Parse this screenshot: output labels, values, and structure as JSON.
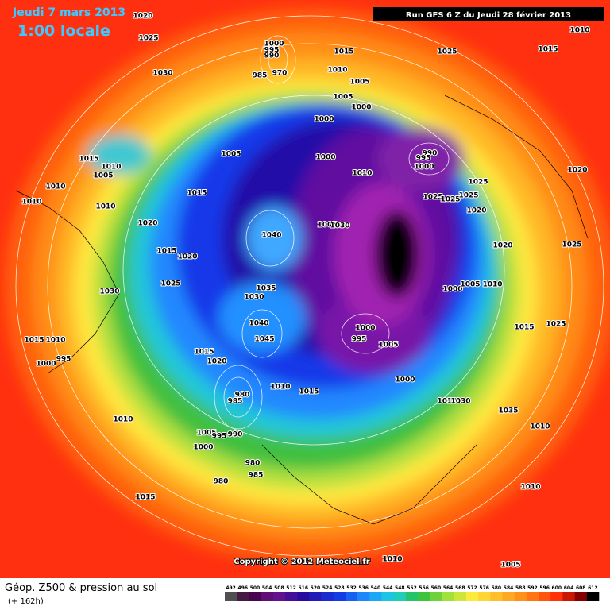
{
  "header": {
    "date": "Jeudi 7 mars 2013",
    "time": "1:00 locale",
    "run": "Run GFS 6 Z du Jeudi 28 février 2013"
  },
  "copyright": "Copyright © 2012 Meteociel.fr",
  "legend": {
    "title": "Géop. Z500 & pression au sol",
    "subtitle": "(+ 162h)",
    "values": [
      492,
      496,
      500,
      504,
      508,
      512,
      516,
      520,
      524,
      528,
      532,
      536,
      540,
      544,
      548,
      552,
      556,
      560,
      564,
      568,
      572,
      576,
      580,
      584,
      588,
      592,
      596,
      600,
      604,
      608,
      612
    ]
  },
  "isobar_labels": [
    "1020",
    "1025",
    "1030",
    "1000",
    "995",
    "990",
    "985",
    "970",
    "1015",
    "1010",
    "1005",
    "1025",
    "1015",
    "1010",
    "1005",
    "1000",
    "1000",
    "990",
    "995",
    "1000",
    "1005",
    "1000",
    "1010",
    "1015",
    "1010",
    "1005",
    "1010",
    "1010",
    "1010",
    "1015",
    "1025",
    "1025",
    "1025",
    "1025",
    "1020",
    "1020",
    "1020",
    "1005",
    "1030",
    "1040",
    "1015",
    "1020",
    "1020",
    "1025",
    "1025",
    "1035",
    "1030",
    "1000",
    "1005",
    "1010",
    "1030",
    "1040",
    "1045",
    "1000",
    "995",
    "1005",
    "1015",
    "1025",
    "1015",
    "1010",
    "1015",
    "1020",
    "1000",
    "995",
    "1000",
    "980",
    "985",
    "1010",
    "1015",
    "1010",
    "1030",
    "1035",
    "1010",
    "1010",
    "1005",
    "995",
    "990",
    "1000",
    "980",
    "985",
    "980",
    "1010",
    "1015",
    "1010",
    "1005"
  ]
}
